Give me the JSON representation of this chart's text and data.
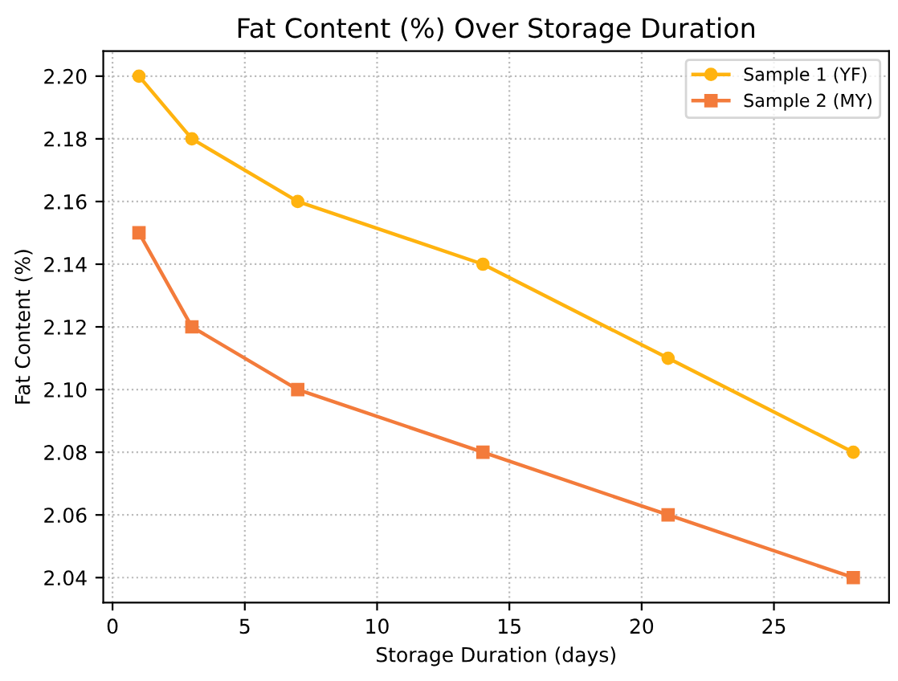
{
  "chart_data": {
    "type": "line",
    "title": "Fat Content (%) Over Storage Duration",
    "xlabel": "Storage Duration (days)",
    "ylabel": "Fat Content (%)",
    "x": [
      1,
      3,
      7,
      14,
      21,
      28
    ],
    "series": [
      {
        "name": "Sample 1 (YF)",
        "color": "#ffb30f",
        "values": [
          2.2,
          2.18,
          2.16,
          2.14,
          2.11,
          2.08
        ],
        "marker": "circle"
      },
      {
        "name": "Sample 2 (MY)",
        "color": "#f37b3b",
        "values": [
          2.15,
          2.12,
          2.1,
          2.08,
          2.06,
          2.04
        ],
        "marker": "square"
      }
    ],
    "xlim": [
      -0.35,
      29.35
    ],
    "xticks": [
      0,
      5,
      10,
      15,
      20,
      25
    ],
    "ylim": [
      2.032,
      2.208
    ],
    "yticks": [
      2.04,
      2.06,
      2.08,
      {
        "value": 2.1,
        "label": "2.10"
      },
      2.12,
      2.14,
      2.16,
      2.18,
      {
        "value": 2.2,
        "label": "2.20"
      }
    ],
    "grid": true,
    "legend": "top right",
    "line_style": "solid"
  }
}
